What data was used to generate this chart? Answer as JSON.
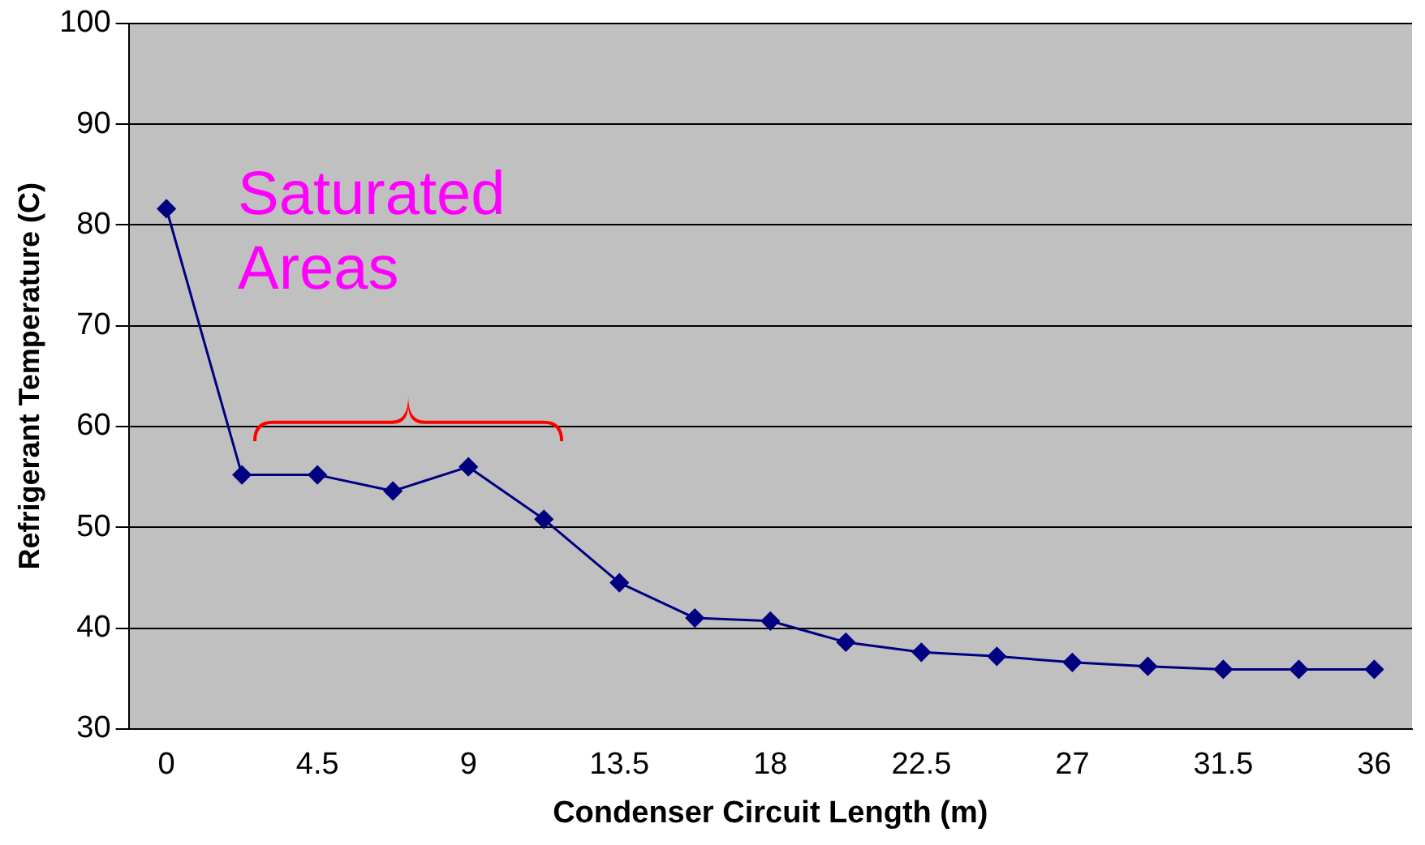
{
  "chart_data": {
    "type": "line",
    "xlabel": "Condenser Circuit Length (m)",
    "ylabel": "Refrigerant Temperature (C)",
    "categories": [
      "0",
      null,
      "4.5",
      null,
      "9",
      null,
      "13.5",
      null,
      "18",
      null,
      "22.5",
      null,
      "27",
      null,
      "31.5",
      null,
      "36"
    ],
    "series": [
      {
        "color": "#000080",
        "values": [
          81.6,
          55.2,
          55.2,
          53.6,
          56.0,
          50.8,
          44.5,
          41.0,
          40.7,
          38.6,
          37.6,
          37.2,
          36.6,
          36.2,
          35.9,
          35.9,
          35.9
        ]
      }
    ],
    "ylim": [
      30,
      100
    ],
    "yticks": [
      30,
      40,
      50,
      60,
      70,
      80,
      90,
      100
    ],
    "grid": "y",
    "marker": "diamond",
    "line_style": "solid",
    "legend": false,
    "annotations": [
      "Saturated Areas"
    ]
  }
}
